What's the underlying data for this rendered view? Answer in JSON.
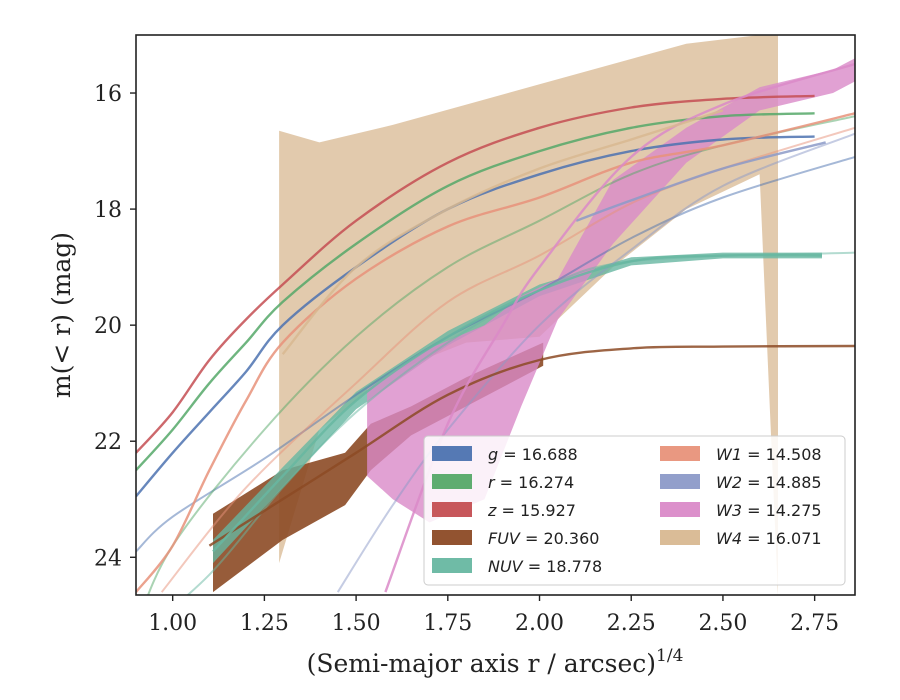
{
  "chart_data": {
    "type": "line",
    "xlabel": "(Semi-major axis r / arcsec)",
    "xlabel_power": "1/4",
    "ylabel": "m(< r) (mag)",
    "xlim": [
      0.9,
      2.86
    ],
    "ylim": [
      24.65,
      15.0
    ],
    "y_inverted": true,
    "grid": false,
    "legend_position": "lower right",
    "x_ticks": [
      1.0,
      1.25,
      1.5,
      1.75,
      2.0,
      2.25,
      2.5,
      2.75
    ],
    "x_tick_labels": [
      "1.00",
      "1.25",
      "1.50",
      "1.75",
      "2.00",
      "2.25",
      "2.50",
      "2.75"
    ],
    "y_ticks": [
      16,
      18,
      20,
      22,
      24
    ],
    "y_tick_labels": [
      "16",
      "18",
      "20",
      "22",
      "24"
    ],
    "series": [
      {
        "name": "g = 16.688",
        "color": "#4C72B0",
        "m_tot": 16.688,
        "data": [
          [
            0.9,
            22.95
          ],
          [
            1.0,
            22.2
          ],
          [
            1.1,
            21.5
          ],
          [
            1.2,
            20.8
          ],
          [
            1.3,
            20.0
          ],
          [
            1.5,
            19.0
          ],
          [
            1.75,
            18.0
          ],
          [
            2.0,
            17.4
          ],
          [
            2.25,
            17.0
          ],
          [
            2.5,
            16.8
          ],
          [
            2.75,
            16.75
          ]
        ],
        "model": [
          [
            0.9,
            23.9
          ],
          [
            1.0,
            23.3
          ],
          [
            1.25,
            22.3
          ],
          [
            1.5,
            21.2
          ],
          [
            1.75,
            20.2
          ],
          [
            2.0,
            19.4
          ],
          [
            2.25,
            18.5
          ],
          [
            2.5,
            17.8
          ],
          [
            2.86,
            17.1
          ]
        ]
      },
      {
        "name": "r = 16.274",
        "color": "#55A868",
        "m_tot": 16.274,
        "data": [
          [
            0.9,
            22.5
          ],
          [
            1.0,
            21.8
          ],
          [
            1.1,
            21.0
          ],
          [
            1.2,
            20.3
          ],
          [
            1.3,
            19.6
          ],
          [
            1.5,
            18.6
          ],
          [
            1.75,
            17.6
          ],
          [
            2.0,
            17.0
          ],
          [
            2.25,
            16.6
          ],
          [
            2.5,
            16.4
          ],
          [
            2.75,
            16.35
          ]
        ],
        "model": [
          [
            0.9,
            25.2
          ],
          [
            1.0,
            23.8
          ],
          [
            1.25,
            21.8
          ],
          [
            1.5,
            20.2
          ],
          [
            1.75,
            19.0
          ],
          [
            2.0,
            18.2
          ],
          [
            2.25,
            17.4
          ],
          [
            2.5,
            16.9
          ],
          [
            2.86,
            16.4
          ]
        ]
      },
      {
        "name": "z = 15.927",
        "color": "#C44E52",
        "m_tot": 15.927,
        "data": [
          [
            0.9,
            22.2
          ],
          [
            1.0,
            21.5
          ],
          [
            1.1,
            20.6
          ],
          [
            1.2,
            19.9
          ],
          [
            1.3,
            19.3
          ],
          [
            1.5,
            18.2
          ],
          [
            1.75,
            17.2
          ],
          [
            2.0,
            16.6
          ],
          [
            2.25,
            16.25
          ],
          [
            2.5,
            16.1
          ],
          [
            2.75,
            16.05
          ]
        ],
        "model": []
      },
      {
        "name": "FUV = 20.360",
        "color": "#8C4A25",
        "m_tot": 20.36,
        "data": [
          [
            1.1,
            23.8
          ],
          [
            1.3,
            23.0
          ],
          [
            1.5,
            22.2
          ],
          [
            1.75,
            21.2
          ],
          [
            2.0,
            20.6
          ],
          [
            2.25,
            20.4
          ],
          [
            2.5,
            20.37
          ],
          [
            2.86,
            20.36
          ]
        ],
        "band": [
          [
            1.11,
            23.25,
            24.6
          ],
          [
            1.3,
            22.5,
            23.7
          ],
          [
            1.47,
            22.2,
            23.1
          ],
          [
            1.54,
            21.7,
            22.5
          ],
          [
            1.65,
            21.4,
            21.9
          ],
          [
            1.8,
            20.9,
            21.4
          ],
          [
            2.01,
            20.3,
            20.7
          ]
        ]
      },
      {
        "name": "NUV = 18.778",
        "color": "#67B7A1",
        "m_tot": 18.778,
        "data": [
          [
            1.11,
            23.9
          ],
          [
            1.3,
            22.6
          ],
          [
            1.5,
            21.3
          ],
          [
            1.75,
            20.2
          ],
          [
            2.0,
            19.4
          ],
          [
            2.25,
            18.9
          ],
          [
            2.5,
            18.8
          ],
          [
            2.77,
            18.8
          ]
        ],
        "model": [
          [
            0.9,
            25.4
          ],
          [
            1.1,
            24.3
          ],
          [
            1.3,
            22.8
          ],
          [
            1.5,
            21.5
          ],
          [
            1.75,
            20.3
          ],
          [
            2.0,
            19.4
          ],
          [
            2.25,
            18.9
          ],
          [
            2.86,
            18.75
          ]
        ],
        "band": [
          [
            1.11,
            23.7,
            24.1
          ],
          [
            1.3,
            22.45,
            22.8
          ],
          [
            1.5,
            21.15,
            21.45
          ],
          [
            1.75,
            20.1,
            20.35
          ],
          [
            2.0,
            19.3,
            19.5
          ],
          [
            2.25,
            18.83,
            18.97
          ],
          [
            2.5,
            18.75,
            18.85
          ],
          [
            2.77,
            18.75,
            18.85
          ]
        ]
      },
      {
        "name": "W1 = 14.508",
        "color": "#E8927A",
        "m_tot": 14.508,
        "data": [
          [
            0.9,
            24.6
          ],
          [
            1.0,
            23.8
          ],
          [
            1.1,
            22.5
          ],
          [
            1.2,
            21.3
          ],
          [
            1.3,
            20.3
          ],
          [
            1.5,
            19.2
          ],
          [
            1.75,
            18.3
          ],
          [
            2.0,
            17.8
          ],
          [
            2.25,
            17.2
          ],
          [
            2.5,
            16.9
          ],
          [
            2.86,
            16.35
          ]
        ],
        "model": [
          [
            0.97,
            24.6
          ],
          [
            1.2,
            22.8
          ],
          [
            1.5,
            21.0
          ],
          [
            1.75,
            19.6
          ],
          [
            2.0,
            18.8
          ],
          [
            2.25,
            17.9
          ],
          [
            2.5,
            17.3
          ],
          [
            2.86,
            16.6
          ]
        ]
      },
      {
        "name": "W2 = 14.885",
        "color": "#8C9AC8",
        "m_tot": 14.885,
        "data": [
          [
            2.1,
            18.2
          ],
          [
            2.25,
            17.85
          ],
          [
            2.5,
            17.3
          ],
          [
            2.78,
            16.85
          ]
        ],
        "model": [
          [
            1.45,
            24.6
          ],
          [
            1.6,
            23.1
          ],
          [
            1.75,
            21.8
          ],
          [
            2.0,
            20.0
          ],
          [
            2.25,
            18.7
          ],
          [
            2.5,
            17.6
          ],
          [
            2.86,
            16.7
          ]
        ]
      },
      {
        "name": "W3 = 14.275",
        "color": "#DA8AC8",
        "m_tot": 14.275,
        "data": [
          [
            1.58,
            24.6
          ],
          [
            1.75,
            21.7
          ],
          [
            1.9,
            20.0
          ],
          [
            2.0,
            19.0
          ],
          [
            2.25,
            17.1
          ],
          [
            2.5,
            16.2
          ],
          [
            2.86,
            15.5
          ]
        ],
        "band": [
          [
            1.53,
            21.1,
            22.6
          ],
          [
            1.6,
            20.8,
            23.0
          ],
          [
            1.7,
            20.4,
            23.4
          ],
          [
            1.85,
            20.0,
            23.0
          ],
          [
            1.95,
            19.5,
            21.4
          ],
          [
            2.05,
            19.2,
            19.9
          ],
          [
            2.2,
            17.5,
            18.6
          ],
          [
            2.4,
            16.6,
            17.2
          ],
          [
            2.6,
            15.9,
            16.3
          ],
          [
            2.8,
            15.6,
            16.0
          ],
          [
            2.86,
            15.4,
            15.8
          ]
        ]
      },
      {
        "name": "W4 = 16.071",
        "color": "#D8B891",
        "m_tot": 16.071,
        "data": [
          [
            1.3,
            20.5
          ],
          [
            1.5,
            19.0
          ],
          [
            1.75,
            18.0
          ],
          [
            2.0,
            17.3
          ],
          [
            2.25,
            16.8
          ],
          [
            2.5,
            16.3
          ]
        ],
        "band": [
          [
            1.29,
            16.65,
            24.1
          ],
          [
            1.4,
            16.85,
            21.8
          ],
          [
            1.6,
            16.55,
            20.8
          ],
          [
            1.8,
            16.2,
            20.3
          ],
          [
            2.0,
            15.85,
            20.2
          ],
          [
            2.2,
            15.5,
            19.0
          ],
          [
            2.4,
            15.15,
            18.0
          ],
          [
            2.6,
            15.0,
            17.4
          ],
          [
            2.65,
            15.0,
            24.65
          ]
        ]
      }
    ],
    "legend_columns": [
      [
        "g = 16.688",
        "r = 16.274",
        "z = 15.927",
        "FUV = 20.360",
        "NUV = 18.778"
      ],
      [
        "W1 = 14.508",
        "W2 = 14.885",
        "W3 = 14.275",
        "W4 = 16.071"
      ]
    ]
  }
}
